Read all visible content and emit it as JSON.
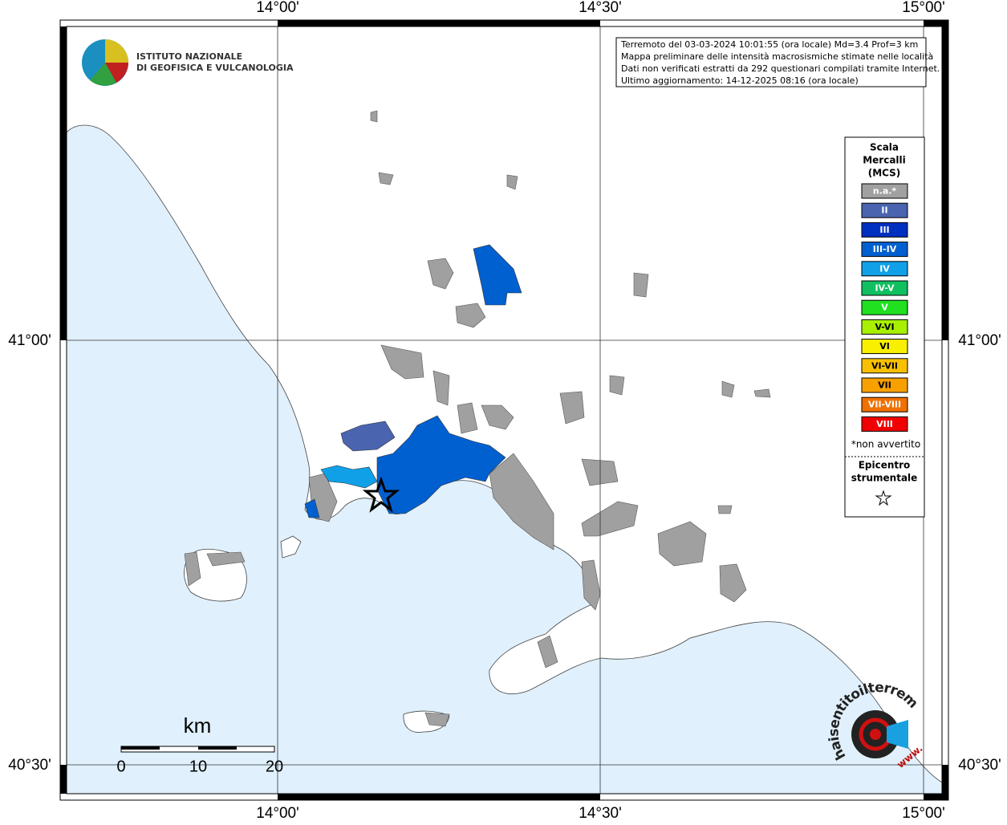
{
  "axes": {
    "top": [
      "14°00'",
      "14°30'",
      "15°00'"
    ],
    "bottom": [
      "14°00'",
      "14°30'",
      "15°00'"
    ],
    "left": [
      "41°00'",
      "40°30'"
    ],
    "right": [
      "41°00'",
      "40°30'"
    ]
  },
  "logo": {
    "line1": "ISTITUTO NAZIONALE",
    "line2": "DI GEOFISICA E VULCANOLOGIA"
  },
  "info": [
    "Terremoto del 03-03-2024 10:01:55 (ora locale) Md=3.4 Prof=3 km",
    "Mappa preliminare delle intensità macrosismiche stimate nelle località",
    "Dati non verificati estratti da 292 questionari compilati tramite Internet.",
    "Ultimo aggiornamento: 14-12-2025 08:16 (ora locale)"
  ],
  "legend": {
    "title": [
      "Scala",
      "Mercalli",
      "(MCS)"
    ],
    "classes": [
      {
        "label": "n.a.*",
        "color": "#a0a0a0"
      },
      {
        "label": "II",
        "color": "#4a64b0"
      },
      {
        "label": "III",
        "color": "#0030c0"
      },
      {
        "label": "III-IV",
        "color": "#0060d0"
      },
      {
        "label": "IV",
        "color": "#10a0e8"
      },
      {
        "label": "IV-V",
        "color": "#10c060"
      },
      {
        "label": "V",
        "color": "#20e020"
      },
      {
        "label": "V-VI",
        "color": "#a8f000"
      },
      {
        "label": "VI",
        "color": "#f8f000"
      },
      {
        "label": "VI-VII",
        "color": "#f8c000"
      },
      {
        "label": "VII",
        "color": "#f8a000"
      },
      {
        "label": "VII-VIII",
        "color": "#f07000"
      },
      {
        "label": "VIII",
        "color": "#f00000"
      }
    ],
    "note": "*non avvertito",
    "epicenter": [
      "Epicentro",
      "strumentale"
    ]
  },
  "scale_bar": {
    "unit": "km",
    "labels": [
      "0",
      "10",
      "20"
    ]
  },
  "watermark": {
    "site": "haisentitoilterremoto.it",
    "prefix": "www."
  }
}
